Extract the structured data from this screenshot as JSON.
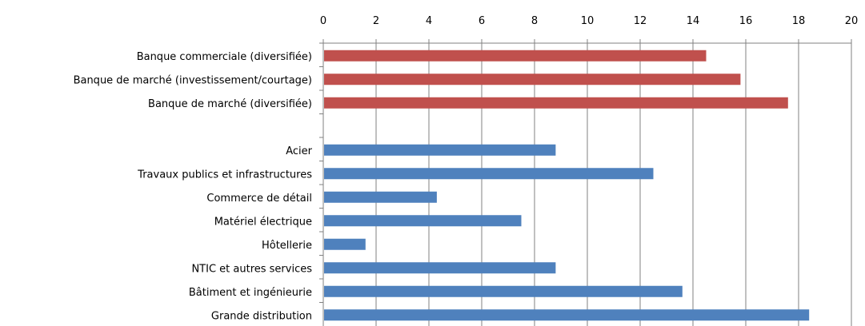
{
  "chart_data": {
    "type": "bar",
    "orientation": "horizontal",
    "x_axis_position": "top",
    "xlim": [
      0,
      20
    ],
    "x_ticks": [
      0,
      2,
      4,
      6,
      8,
      10,
      12,
      14,
      16,
      18,
      20
    ],
    "grid": true,
    "title": "",
    "xlabel": "",
    "ylabel": "",
    "categories": [
      "Banque commerciale (diversifiée)",
      "Banque de marché (investissement/courtage)",
      "Banque de marché (diversifiée)",
      "",
      "Acier",
      "Travaux publics et infrastructures",
      "Commerce de détail",
      "Matériel électrique",
      "Hôtellerie",
      "NTIC et autres services",
      "Bâtiment et ingénieurie",
      "Grande distribution"
    ],
    "values": [
      14.5,
      15.8,
      17.6,
      null,
      8.8,
      12.5,
      4.3,
      7.5,
      1.6,
      8.8,
      13.6,
      18.4
    ],
    "bar_colors": [
      "#c0504d",
      "#c0504d",
      "#c0504d",
      null,
      "#4f81bd",
      "#4f81bd",
      "#4f81bd",
      "#4f81bd",
      "#4f81bd",
      "#4f81bd",
      "#4f81bd",
      "#4f81bd"
    ],
    "colors": {
      "banks": "#c0504d",
      "sectors": "#4f81bd",
      "grid": "#808080",
      "axis": "#808080"
    }
  }
}
